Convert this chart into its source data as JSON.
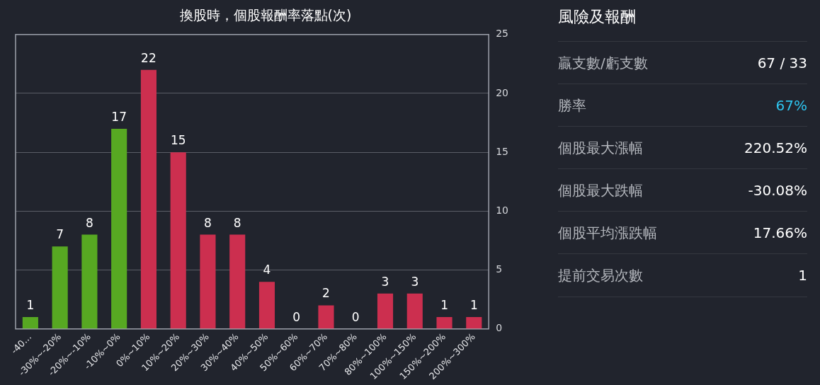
{
  "chart_data": [
    {
      "type": "bar",
      "title": "換股時，個股報酬率落點(次)",
      "categories": [
        "-40…",
        "-30%~-20%",
        "-20%~-10%",
        "-10%~0%",
        "0%~10%",
        "10%~20%",
        "20%~30%",
        "30%~40%",
        "40%~50%",
        "50%~60%",
        "60%~70%",
        "70%~80%",
        "80%~100%",
        "100%~150%",
        "150%~200%",
        "200%~300%"
      ],
      "values": [
        1,
        7,
        8,
        17,
        22,
        15,
        8,
        8,
        4,
        0,
        2,
        0,
        3,
        3,
        1,
        1
      ],
      "colors": [
        "#57a822",
        "#57a822",
        "#57a822",
        "#57a822",
        "#cc2f4f",
        "#cc2f4f",
        "#cc2f4f",
        "#cc2f4f",
        "#cc2f4f",
        "#cc2f4f",
        "#cc2f4f",
        "#cc2f4f",
        "#cc2f4f",
        "#cc2f4f",
        "#cc2f4f",
        "#cc2f4f"
      ],
      "ylim": [
        0,
        25
      ],
      "yticks": [
        0,
        5,
        10,
        15,
        20,
        25
      ],
      "grid": "y",
      "data_labels": true
    },
    {
      "type": "other",
      "title": "風險及報酬",
      "annotations": [
        "贏支數/虧支數",
        "67 / 33",
        "勝率",
        "67%",
        "個股最大漲幅",
        "220.52%",
        "個股最大跌幅",
        "-30.08%",
        "個股平均漲跌幅",
        "17.66%",
        "提前交易次數",
        "1"
      ],
      "colors": [
        "#b4b7bd",
        "#ffffff",
        "#b4b7bd",
        "#2ec4ee",
        "#b4b7bd",
        "#ffffff",
        "#b4b7bd",
        "#ffffff",
        "#b4b7bd",
        "#ffffff",
        "#b4b7bd",
        "#ffffff"
      ]
    }
  ]
}
